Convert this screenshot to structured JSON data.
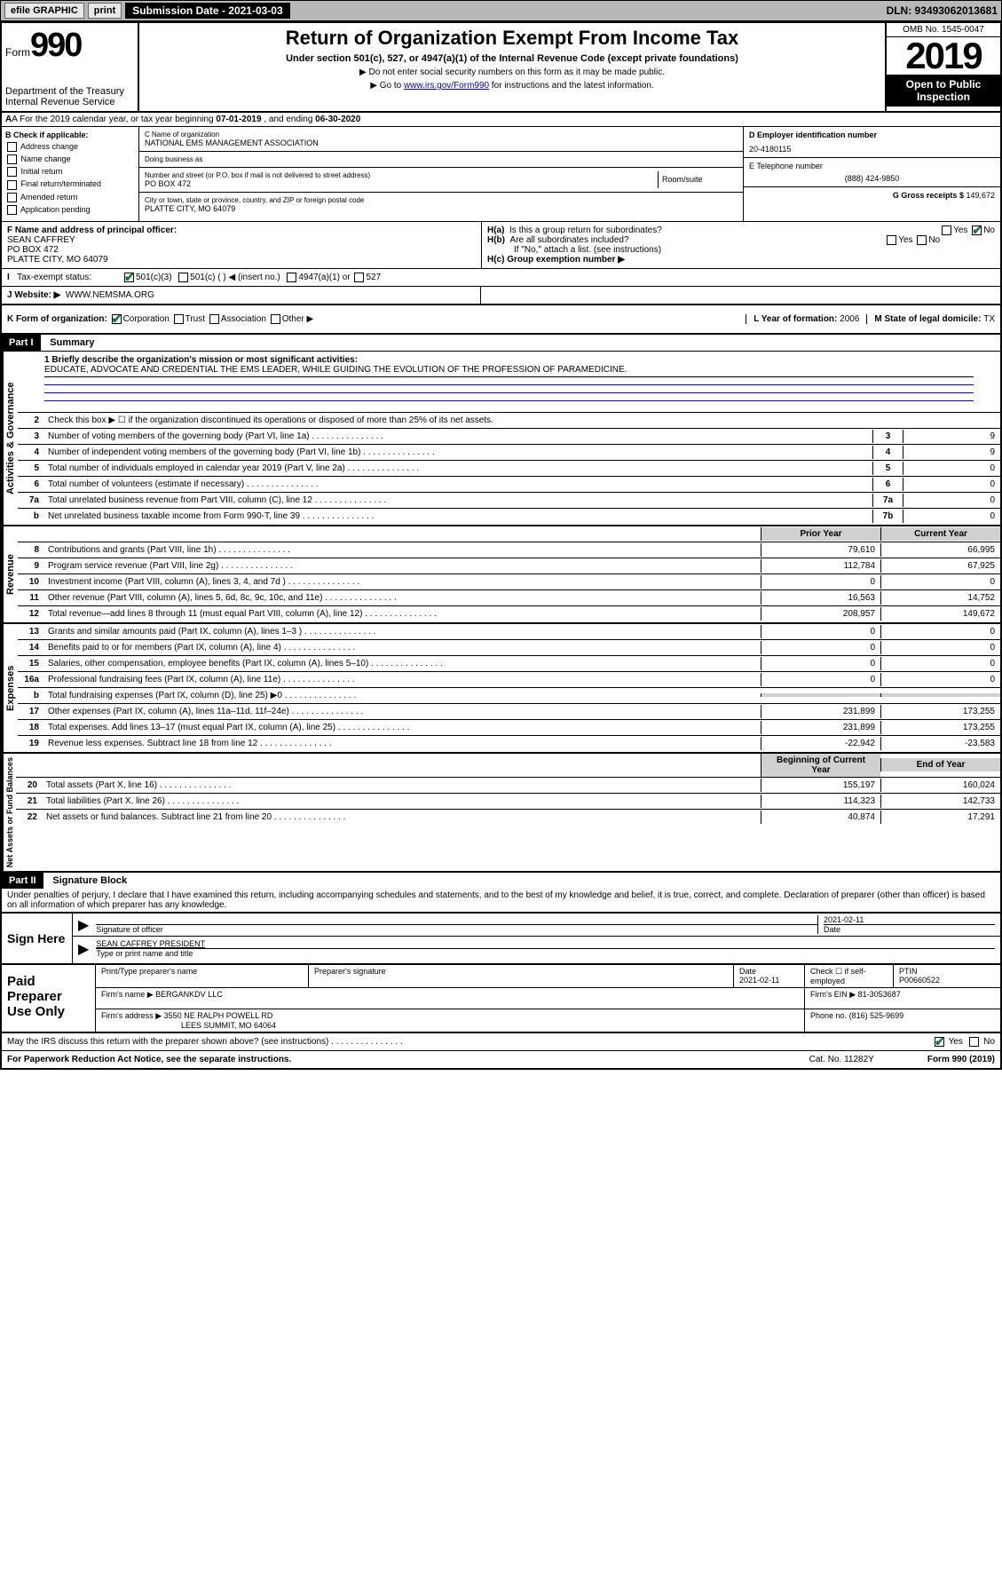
{
  "topbar": {
    "efile": "efile GRAPHIC",
    "print": "print",
    "subdate_lbl": "Submission Date - 2021-03-03",
    "dln": "DLN: 93493062013681"
  },
  "header": {
    "form_word": "Form",
    "form_no": "990",
    "title": "Return of Organization Exempt From Income Tax",
    "subtitle": "Under section 501(c), 527, or 4947(a)(1) of the Internal Revenue Code (except private foundations)",
    "note1": "▶ Do not enter social security numbers on this form as it may be made public.",
    "note2_pre": "▶ Go to ",
    "note2_link": "www.irs.gov/Form990",
    "note2_post": " for instructions and the latest information.",
    "dept": "Department of the Treasury\nInternal Revenue Service",
    "omb": "OMB No. 1545-0047",
    "year": "2019",
    "otp": "Open to Public Inspection"
  },
  "rowA": {
    "text_pre": "A For the 2019 calendar year, or tax year beginning ",
    "begin": "07-01-2019",
    "mid": " , and ending ",
    "end": "06-30-2020"
  },
  "colB": {
    "hdr": "B Check if applicable:",
    "items": [
      "Address change",
      "Name change",
      "Initial return",
      "Final return/terminated",
      "Amended return",
      "Application pending"
    ]
  },
  "colC": {
    "name_lbl": "C Name of organization",
    "name": "NATIONAL EMS MANAGEMENT ASSOCIATION",
    "dba_lbl": "Doing business as",
    "dba": "",
    "addr_lbl": "Number and street (or P.O. box if mail is not delivered to street address)",
    "addr": "PO BOX 472",
    "room_lbl": "Room/suite",
    "city_lbl": "City or town, state or province, country, and ZIP or foreign postal code",
    "city": "PLATTE CITY, MO  64079"
  },
  "colD": {
    "ein_lbl": "D Employer identification number",
    "ein": "20-4180115",
    "tel_lbl": "E Telephone number",
    "tel": "(888) 424-9850",
    "gross_lbl": "G Gross receipts $ ",
    "gross": "149,672"
  },
  "rowF": {
    "lbl": "F Name and address of principal officer:",
    "name": "SEAN CAFFREY",
    "addr1": "PO BOX 472",
    "addr2": "PLATTE CITY, MO  64079"
  },
  "rowH": {
    "ha": "H(a)  Is this a group return for subordinates?",
    "hb": "H(b)  Are all subordinates included?",
    "hb_note": "If \"No,\" attach a list. (see instructions)",
    "hc": "H(c)  Group exemption number ▶"
  },
  "rowI": {
    "lbl": "Tax-exempt status:",
    "opt1": "501(c)(3)",
    "opt2": "501(c) (  ) ◀ (insert no.)",
    "opt3": "4947(a)(1) or",
    "opt4": "527"
  },
  "rowJ": {
    "lbl": "J   Website: ▶",
    "val": "WWW.NEMSMA.ORG"
  },
  "rowK": {
    "lbl": "K Form of organization:",
    "corp": "Corporation",
    "trust": "Trust",
    "assoc": "Association",
    "other": "Other ▶",
    "l_lbl": "L Year of formation: ",
    "l_val": "2006",
    "m_lbl": "M State of legal domicile: ",
    "m_val": "TX"
  },
  "partI": {
    "hdr": "Part I",
    "title": "Summary",
    "q1_lbl": "1  Briefly describe the organization's mission or most significant activities:",
    "q1_val": "EDUCATE, ADVOCATE AND CREDENTIAL THE EMS LEADER, WHILE GUIDING THE EVOLUTION OF THE PROFESSION OF PARAMEDICINE.",
    "q2": "Check this box ▶ ☐  if the organization discontinued its operations or disposed of more than 25% of its net assets.",
    "lines_gov": [
      {
        "n": "3",
        "d": "Number of voting members of the governing body (Part VI, line 1a)",
        "b": "3",
        "v": "9"
      },
      {
        "n": "4",
        "d": "Number of independent voting members of the governing body (Part VI, line 1b)",
        "b": "4",
        "v": "9"
      },
      {
        "n": "5",
        "d": "Total number of individuals employed in calendar year 2019 (Part V, line 2a)",
        "b": "5",
        "v": "0"
      },
      {
        "n": "6",
        "d": "Total number of volunteers (estimate if necessary)",
        "b": "6",
        "v": "0"
      },
      {
        "n": "7a",
        "d": "Total unrelated business revenue from Part VIII, column (C), line 12",
        "b": "7a",
        "v": "0"
      },
      {
        "n": "b",
        "d": "Net unrelated business taxable income from Form 990-T, line 39",
        "b": "7b",
        "v": "0"
      }
    ],
    "col_hdr": {
      "n": "",
      "d": "",
      "py": "Prior Year",
      "cy": "Current Year"
    },
    "lines_rev": [
      {
        "n": "8",
        "d": "Contributions and grants (Part VIII, line 1h)",
        "py": "79,610",
        "cy": "66,995"
      },
      {
        "n": "9",
        "d": "Program service revenue (Part VIII, line 2g)",
        "py": "112,784",
        "cy": "67,925"
      },
      {
        "n": "10",
        "d": "Investment income (Part VIII, column (A), lines 3, 4, and 7d )",
        "py": "0",
        "cy": "0"
      },
      {
        "n": "11",
        "d": "Other revenue (Part VIII, column (A), lines 5, 6d, 8c, 9c, 10c, and 11e)",
        "py": "16,563",
        "cy": "14,752"
      },
      {
        "n": "12",
        "d": "Total revenue—add lines 8 through 11 (must equal Part VIII, column (A), line 12)",
        "py": "208,957",
        "cy": "149,672"
      }
    ],
    "lines_exp": [
      {
        "n": "13",
        "d": "Grants and similar amounts paid (Part IX, column (A), lines 1–3 )",
        "py": "0",
        "cy": "0"
      },
      {
        "n": "14",
        "d": "Benefits paid to or for members (Part IX, column (A), line 4)",
        "py": "0",
        "cy": "0"
      },
      {
        "n": "15",
        "d": "Salaries, other compensation, employee benefits (Part IX, column (A), lines 5–10)",
        "py": "0",
        "cy": "0"
      },
      {
        "n": "16a",
        "d": "Professional fundraising fees (Part IX, column (A), line 11e)",
        "py": "0",
        "cy": "0"
      },
      {
        "n": "b",
        "d": "Total fundraising expenses (Part IX, column (D), line 25) ▶0",
        "py": "",
        "cy": "",
        "shaded": true
      },
      {
        "n": "17",
        "d": "Other expenses (Part IX, column (A), lines 11a–11d, 11f–24e)",
        "py": "231,899",
        "cy": "173,255"
      },
      {
        "n": "18",
        "d": "Total expenses. Add lines 13–17 (must equal Part IX, column (A), line 25)",
        "py": "231,899",
        "cy": "173,255"
      },
      {
        "n": "19",
        "d": "Revenue less expenses. Subtract line 18 from line 12",
        "py": "-22,942",
        "cy": "-23,583"
      }
    ],
    "col_hdr2": {
      "py": "Beginning of Current Year",
      "cy": "End of Year"
    },
    "lines_net": [
      {
        "n": "20",
        "d": "Total assets (Part X, line 16)",
        "py": "155,197",
        "cy": "160,024"
      },
      {
        "n": "21",
        "d": "Total liabilities (Part X, line 26)",
        "py": "114,323",
        "cy": "142,733"
      },
      {
        "n": "22",
        "d": "Net assets or fund balances. Subtract line 21 from line 20",
        "py": "40,874",
        "cy": "17,291"
      }
    ],
    "side_gov": "Activities & Governance",
    "side_rev": "Revenue",
    "side_exp": "Expenses",
    "side_net": "Net Assets or Fund Balances"
  },
  "partII": {
    "hdr": "Part II",
    "title": "Signature Block",
    "perjury": "Under penalties of perjury, I declare that I have examined this return, including accompanying schedules and statements, and to the best of my knowledge and belief, it is true, correct, and complete. Declaration of preparer (other than officer) is based on all information of which preparer has any knowledge."
  },
  "sign": {
    "left": "Sign Here",
    "sig_lbl": "Signature of officer",
    "date": "2021-02-11",
    "date_lbl": "Date",
    "name": "SEAN CAFFREY PRESIDENT",
    "name_lbl": "Type or print name and title"
  },
  "prep": {
    "left": "Paid Preparer Use Only",
    "r1": {
      "c1_lbl": "Print/Type preparer's name",
      "c1": "",
      "c2_lbl": "Preparer's signature",
      "c2": "",
      "c3_lbl": "Date",
      "c3": "2021-02-11",
      "c4_lbl": "Check ☐ if self-employed",
      "c5_lbl": "PTIN",
      "c5": "P00660522"
    },
    "r2": {
      "lbl": "Firm's name      ▶",
      "val": "BERGANKDV LLC",
      "ein_lbl": "Firm's EIN ▶",
      "ein": "81-3053687"
    },
    "r3": {
      "lbl": "Firm's address ▶",
      "val1": "3550 NE RALPH POWELL RD",
      "val2": "LEES SUMMIT, MO  64064",
      "ph_lbl": "Phone no.",
      "ph": "(816) 525-9699"
    }
  },
  "footer": {
    "discuss": "May the IRS discuss this return with the preparer shown above? (see instructions)",
    "paperwork": "For Paperwork Reduction Act Notice, see the separate instructions.",
    "cat": "Cat. No. 11282Y",
    "formno": "Form 990 (2019)"
  }
}
